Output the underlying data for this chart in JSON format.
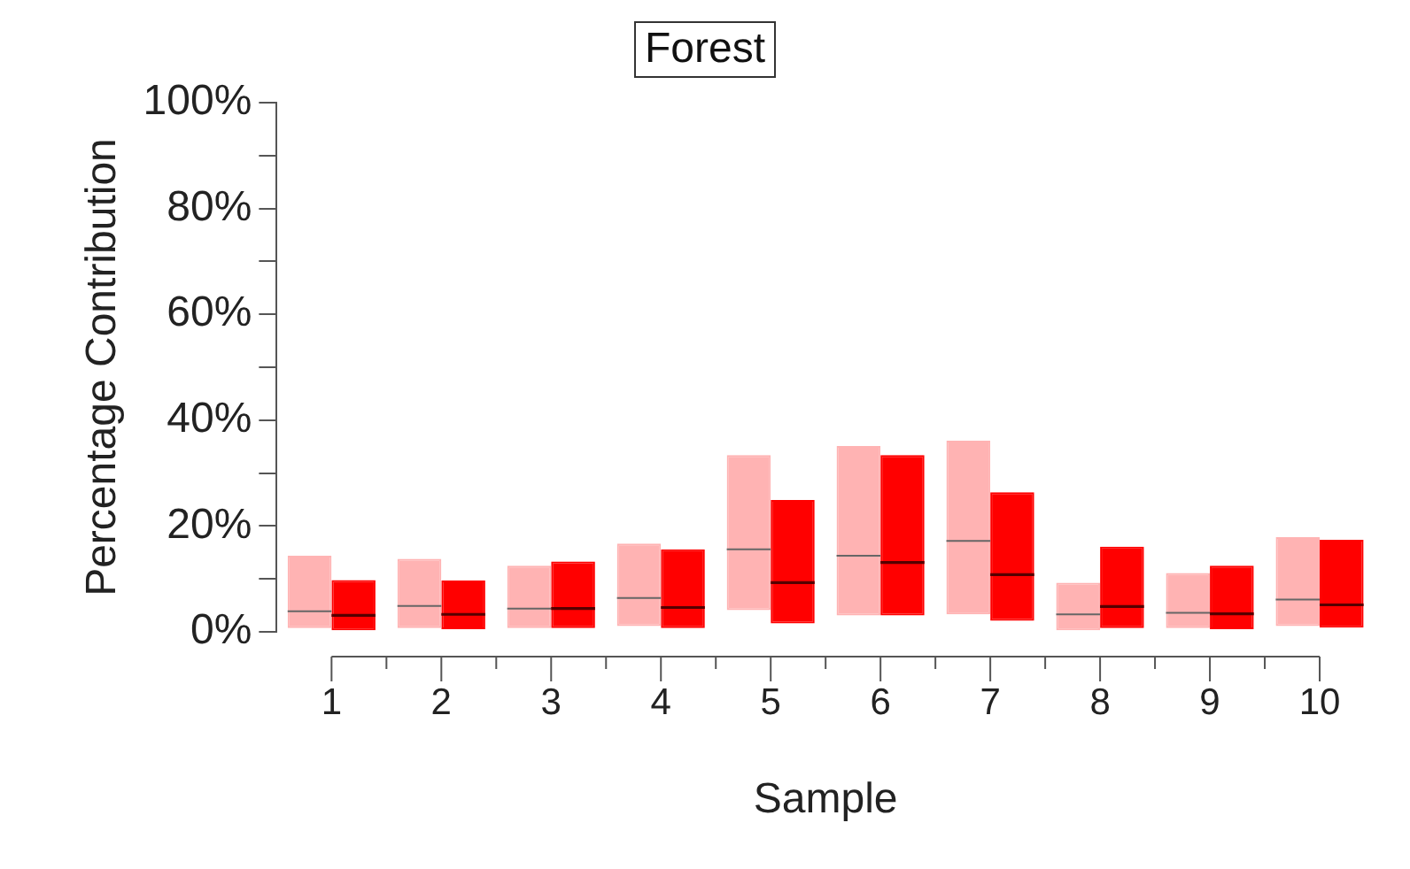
{
  "chart_data": {
    "type": "box",
    "title": "Forest",
    "xlabel": "Sample",
    "ylabel": "Percentage Contribution",
    "categories": [
      "1",
      "2",
      "3",
      "4",
      "5",
      "6",
      "7",
      "8",
      "9",
      "10"
    ],
    "ylim": [
      0,
      100
    ],
    "yticks": [
      {
        "value": 0,
        "label": "0%"
      },
      {
        "value": 10,
        "label": null
      },
      {
        "value": 20,
        "label": "20%"
      },
      {
        "value": 30,
        "label": null
      },
      {
        "value": 40,
        "label": "40%"
      },
      {
        "value": 50,
        "label": null
      },
      {
        "value": 60,
        "label": "60%"
      },
      {
        "value": 70,
        "label": null
      },
      {
        "value": 80,
        "label": "80%"
      },
      {
        "value": 90,
        "label": null
      },
      {
        "value": 100,
        "label": "100%"
      }
    ],
    "grid": false,
    "legend": false,
    "series": [
      {
        "color": "#ffb3b3",
        "boxes": [
          {
            "low": 0.7,
            "q1": 0.7,
            "median": 3.9,
            "q3": 14.4,
            "high": 14.4
          },
          {
            "low": 0.7,
            "q1": 0.7,
            "median": 4.9,
            "q3": 13.8,
            "high": 13.8
          },
          {
            "low": 0.7,
            "q1": 0.7,
            "median": 4.4,
            "q3": 12.5,
            "high": 12.5
          },
          {
            "low": 1.1,
            "q1": 1.1,
            "median": 6.4,
            "q3": 16.7,
            "high": 16.7
          },
          {
            "low": 4.1,
            "q1": 4.1,
            "median": 15.6,
            "q3": 33.4,
            "high": 33.4
          },
          {
            "low": 3.1,
            "q1": 3.1,
            "median": 14.4,
            "q3": 35.1,
            "high": 35.1
          },
          {
            "low": 3.3,
            "q1": 3.3,
            "median": 17.2,
            "q3": 36.1,
            "high": 36.1
          },
          {
            "low": 0.3,
            "q1": 0.3,
            "median": 3.3,
            "q3": 9.3,
            "high": 9.3
          },
          {
            "low": 0.7,
            "q1": 0.7,
            "median": 3.6,
            "q3": 11.1,
            "high": 11.1
          },
          {
            "low": 1.1,
            "q1": 1.1,
            "median": 6.1,
            "q3": 17.9,
            "high": 17.9
          }
        ]
      },
      {
        "color": "#ff0000",
        "boxes": [
          {
            "low": 0.3,
            "q1": 0.3,
            "median": 3.1,
            "q3": 9.8,
            "high": 9.8
          },
          {
            "low": 0.5,
            "q1": 0.5,
            "median": 3.3,
            "q3": 9.7,
            "high": 9.7
          },
          {
            "low": 0.7,
            "q1": 0.7,
            "median": 4.4,
            "q3": 13.3,
            "high": 13.3
          },
          {
            "low": 0.7,
            "q1": 0.7,
            "median": 4.6,
            "q3": 15.6,
            "high": 15.6
          },
          {
            "low": 1.6,
            "q1": 1.6,
            "median": 9.3,
            "q3": 24.9,
            "high": 24.9
          },
          {
            "low": 3.1,
            "q1": 3.1,
            "median": 13.1,
            "q3": 33.4,
            "high": 33.4
          },
          {
            "low": 2.1,
            "q1": 2.1,
            "median": 10.8,
            "q3": 26.4,
            "high": 26.4
          },
          {
            "low": 0.7,
            "q1": 0.7,
            "median": 4.8,
            "q3": 16.1,
            "high": 16.1
          },
          {
            "low": 0.5,
            "q1": 0.5,
            "median": 3.4,
            "q3": 12.5,
            "high": 12.5
          },
          {
            "low": 0.8,
            "q1": 0.8,
            "median": 5.1,
            "q3": 17.4,
            "high": 17.4
          }
        ]
      }
    ]
  }
}
